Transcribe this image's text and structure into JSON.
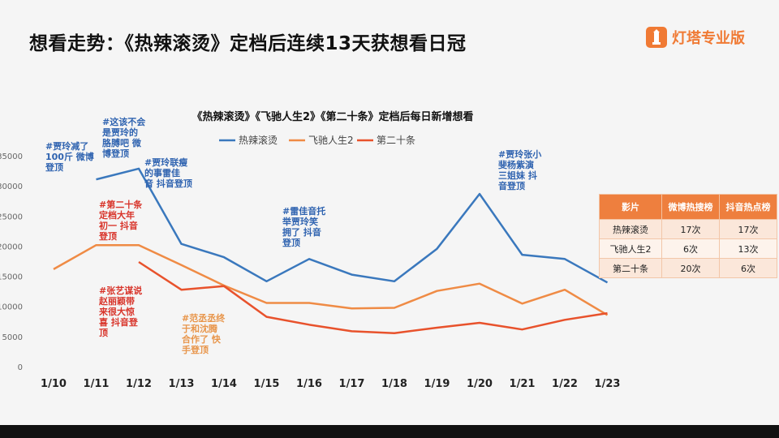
{
  "title": "想看走势：《热辣滚烫》定档后连续13天获想看日冠",
  "brand": {
    "name": "灯塔专业版",
    "color": "#f07a34"
  },
  "chart_data": {
    "type": "line",
    "title": "《热辣滚烫》《飞驰人生2》《第二十条》定档后每日新增想看",
    "categories": [
      "1/10",
      "1/11",
      "1/12",
      "1/13",
      "1/14",
      "1/15",
      "1/16",
      "1/17",
      "1/18",
      "1/19",
      "1/20",
      "1/21",
      "1/22",
      "1/23"
    ],
    "series": [
      {
        "name": "热辣滚烫",
        "color": "#3a78bd",
        "values": [
          null,
          31200,
          33000,
          20500,
          18300,
          14300,
          18000,
          15400,
          14300,
          19700,
          28800,
          18700,
          18000,
          14100
        ]
      },
      {
        "name": "飞驰人生2",
        "color": "#ef8b45",
        "values": [
          16300,
          20300,
          20300,
          17000,
          13600,
          10700,
          10700,
          9800,
          9900,
          12700,
          13900,
          10600,
          12900,
          8700
        ]
      },
      {
        "name": "第二十条",
        "color": "#e8522c",
        "values": [
          null,
          null,
          17500,
          12900,
          13500,
          8400,
          7100,
          6000,
          5700,
          6600,
          7400,
          6300,
          7900,
          9000
        ]
      }
    ],
    "yticks": [
      0,
      5000,
      10000,
      15000,
      20000,
      25000,
      30000,
      35000
    ],
    "ylim": [
      0,
      35000
    ],
    "legend": "top"
  },
  "annotations": [
    {
      "id": "a1",
      "color": "blue",
      "text": "#贾玲减了\n100斤 微博\n登顶"
    },
    {
      "id": "a2",
      "color": "blue",
      "text": "#这该不会\n是贾玲的\n胳膊吧 微\n博登顶"
    },
    {
      "id": "a3",
      "color": "blue",
      "text": "#贾玲联瘦\n的事雷佳\n音 抖音登顶"
    },
    {
      "id": "a4",
      "color": "red",
      "text": "#第二十条\n定档大年\n初一 抖音\n登顶"
    },
    {
      "id": "a5",
      "color": "red",
      "text": "#张艺谋说\n赵丽颖带\n来很大惊\n喜 抖音登\n顶"
    },
    {
      "id": "a6",
      "color": "orange",
      "text": "#范丞丞终\n于和沈腾\n合作了 快\n手登顶"
    },
    {
      "id": "a7",
      "color": "blue",
      "text": "#雷佳音托\n举贾玲笑\n拥了 抖音\n登顶"
    },
    {
      "id": "a8",
      "color": "blue",
      "text": "#贾玲张小\n斐杨紫演\n三姐妹 抖\n音登顶"
    }
  ],
  "table": {
    "headers": [
      "影片",
      "微博热搜榜",
      "抖音热点榜"
    ],
    "rows": [
      [
        "热辣滚烫",
        "17次",
        "17次"
      ],
      [
        "飞驰人生2",
        "6次",
        "13次"
      ],
      [
        "第二十条",
        "20次",
        "6次"
      ]
    ]
  }
}
